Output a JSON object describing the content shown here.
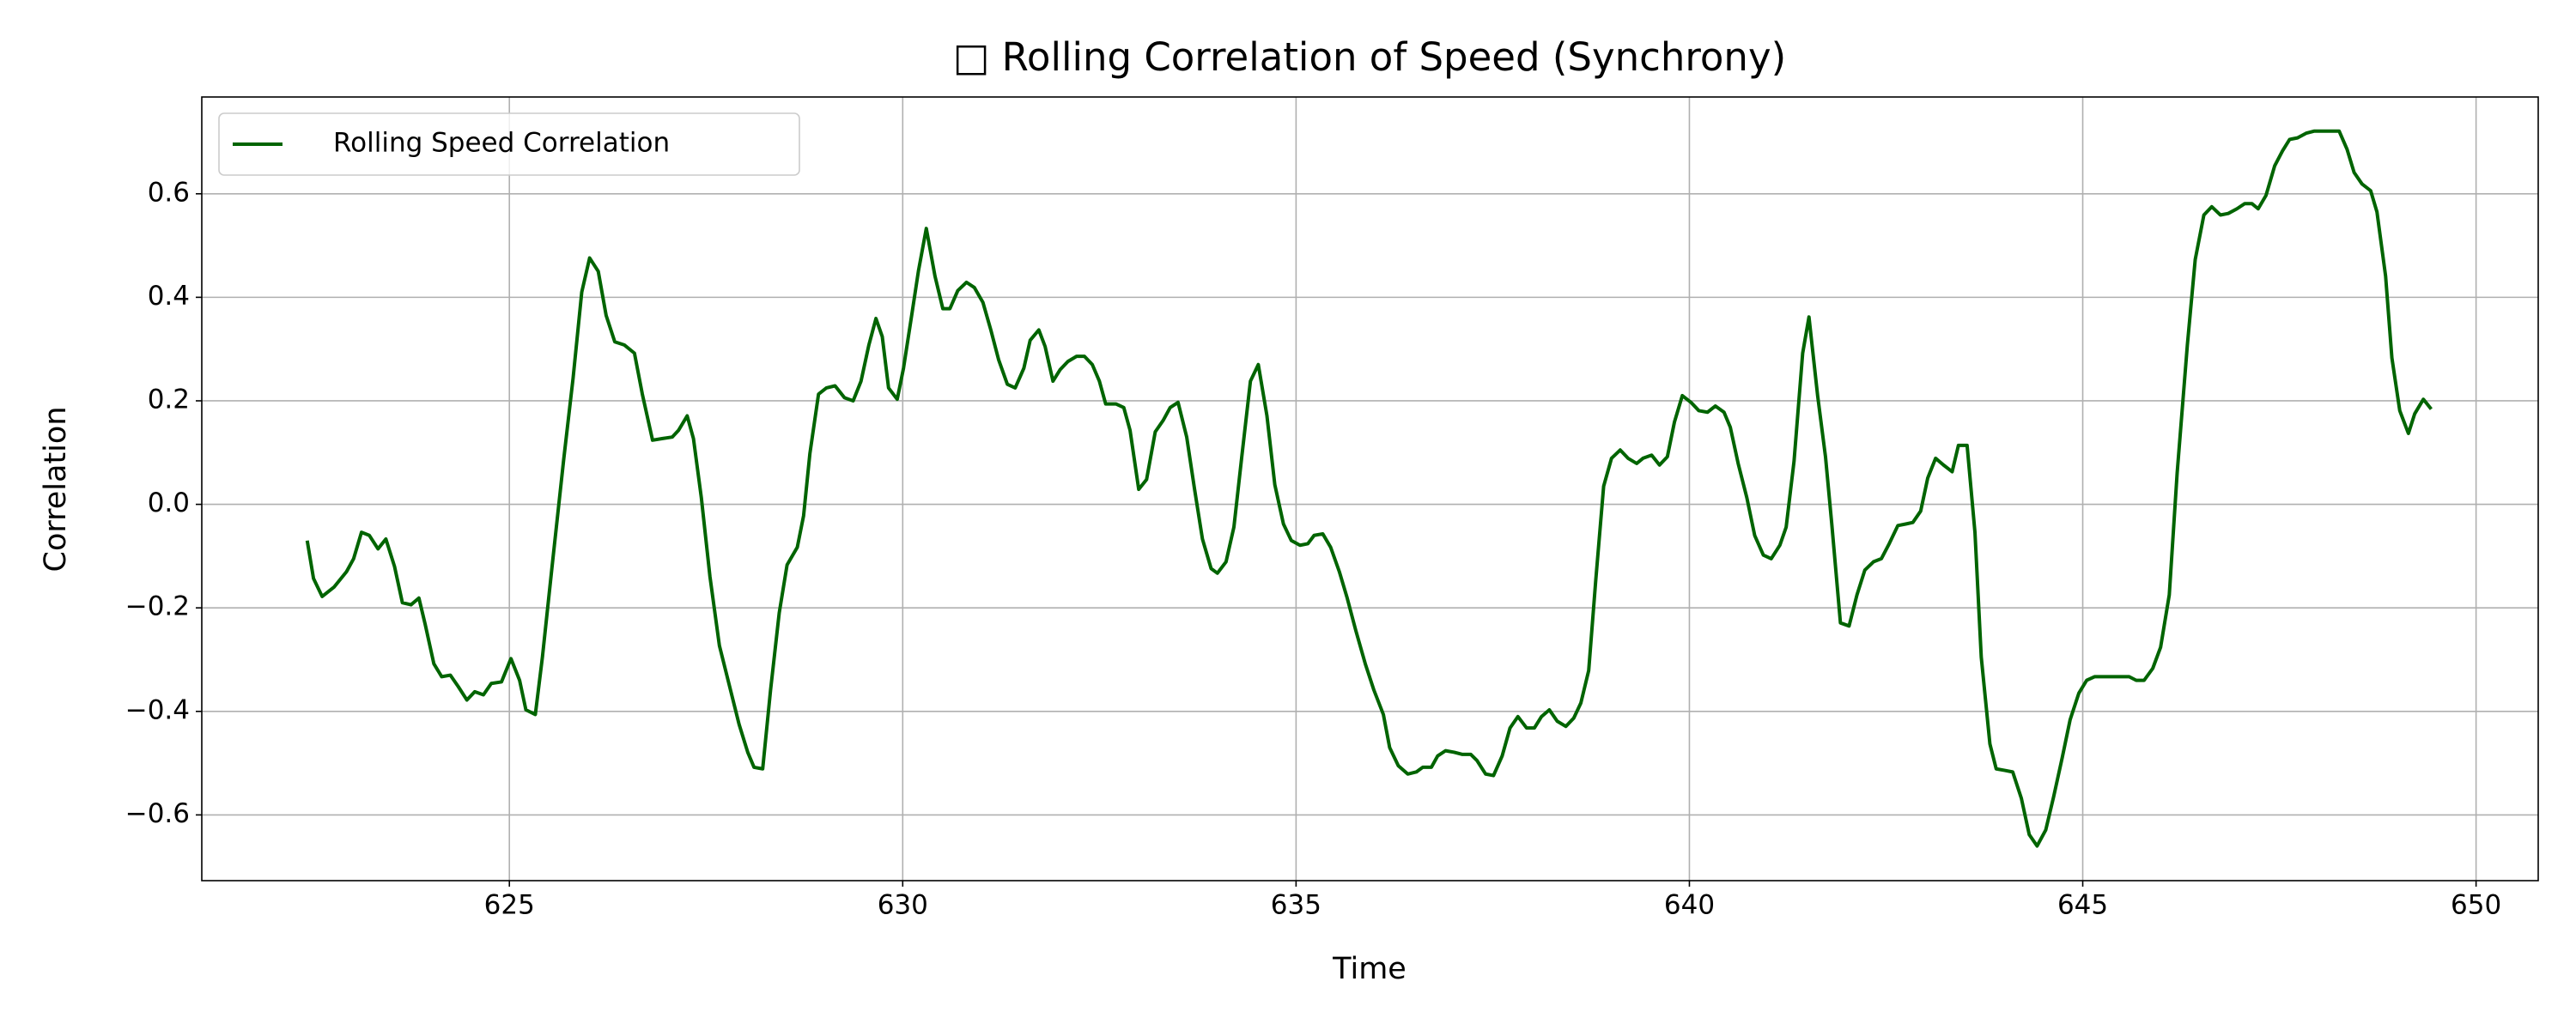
{
  "chart_data": {
    "type": "line",
    "title": "□ Rolling Correlation of Speed (Synchrony)",
    "xlabel": "Time",
    "ylabel": "Correlation",
    "legend": "upper left",
    "grid": true,
    "xlim": [
      621.09,
      650.79
    ],
    "ylim": [
      -0.727,
      0.787
    ],
    "xticks": [
      625,
      630,
      635,
      640,
      645,
      650
    ],
    "yticks": [
      {
        "value": -0.6,
        "label": "−0.6"
      },
      {
        "value": -0.4,
        "label": "−0.4"
      },
      {
        "value": -0.2,
        "label": "−0.2"
      },
      {
        "value": 0,
        "label": "0.0"
      },
      0.2,
      0.4,
      0.6
    ],
    "x": [
      622.43,
      622.51,
      622.62,
      622.77,
      622.93,
      623.02,
      623.12,
      623.22,
      623.33,
      623.43,
      623.54,
      623.64,
      623.75,
      623.85,
      623.93,
      624.04,
      624.14,
      624.25,
      624.35,
      624.46,
      624.56,
      624.67,
      624.77,
      624.9,
      625.02,
      625.13,
      625.21,
      625.33,
      625.42,
      625.54,
      625.69,
      625.81,
      625.92,
      626.02,
      626.13,
      626.23,
      626.34,
      626.46,
      626.59,
      626.69,
      626.82,
      626.94,
      627.07,
      627.15,
      627.26,
      627.34,
      627.44,
      627.55,
      627.67,
      627.8,
      627.92,
      628.03,
      628.11,
      628.22,
      628.32,
      628.43,
      628.53,
      628.66,
      628.74,
      628.82,
      628.93,
      629.03,
      629.14,
      629.26,
      629.37,
      629.47,
      629.57,
      629.66,
      629.74,
      629.82,
      629.93,
      630.01,
      630.12,
      630.2,
      630.3,
      630.41,
      630.51,
      630.6,
      630.7,
      630.81,
      630.91,
      631.02,
      631.12,
      631.22,
      631.33,
      631.43,
      631.54,
      631.62,
      631.73,
      631.81,
      631.91,
      632.0,
      632.1,
      632.21,
      632.31,
      632.41,
      632.5,
      632.58,
      632.71,
      632.81,
      632.89,
      633.0,
      633.1,
      633.21,
      633.31,
      633.4,
      633.5,
      633.61,
      633.71,
      633.81,
      633.92,
      634.0,
      634.11,
      634.21,
      634.31,
      634.42,
      634.52,
      634.63,
      634.73,
      634.84,
      634.94,
      635.05,
      635.15,
      635.23,
      635.34,
      635.44,
      635.55,
      635.65,
      635.76,
      635.88,
      635.99,
      636.11,
      636.19,
      636.3,
      636.42,
      636.53,
      636.61,
      636.72,
      636.8,
      636.9,
      637.01,
      637.11,
      637.22,
      637.3,
      637.41,
      637.51,
      637.62,
      637.72,
      637.82,
      637.93,
      638.03,
      638.12,
      638.22,
      638.32,
      638.43,
      638.53,
      638.62,
      638.72,
      638.81,
      638.91,
      639.01,
      639.12,
      639.22,
      639.33,
      639.41,
      639.52,
      639.62,
      639.72,
      639.81,
      639.91,
      640.02,
      640.12,
      640.23,
      640.33,
      640.44,
      640.52,
      640.62,
      640.73,
      640.83,
      640.94,
      641.04,
      641.15,
      641.23,
      641.33,
      641.44,
      641.52,
      641.63,
      641.73,
      641.81,
      641.92,
      642.03,
      642.13,
      642.23,
      642.34,
      642.44,
      642.54,
      642.65,
      642.75,
      642.84,
      642.94,
      643.03,
      643.13,
      643.23,
      643.34,
      643.42,
      643.53,
      643.63,
      643.71,
      643.82,
      643.9,
      644.01,
      644.11,
      644.22,
      644.32,
      644.42,
      644.53,
      644.63,
      644.74,
      644.84,
      644.95,
      645.05,
      645.15,
      645.26,
      645.36,
      645.49,
      645.59,
      645.68,
      645.78,
      645.89,
      645.99,
      646.1,
      646.2,
      646.33,
      646.43,
      646.54,
      646.64,
      646.75,
      646.85,
      646.96,
      647.06,
      647.15,
      647.23,
      647.33,
      647.44,
      647.54,
      647.63,
      647.73,
      647.84,
      647.94,
      648.05,
      648.15,
      648.26,
      648.36,
      648.45,
      648.55,
      648.66,
      648.74,
      648.85,
      648.93,
      649.03,
      649.14,
      649.22,
      649.33,
      649.43
    ],
    "series": [
      {
        "name": "Rolling Speed Correlation",
        "color": "#006400",
        "values": [
          -0.07,
          -0.143,
          -0.178,
          -0.16,
          -0.13,
          -0.105,
          -0.054,
          -0.06,
          -0.086,
          -0.067,
          -0.12,
          -0.19,
          -0.194,
          -0.181,
          -0.232,
          -0.308,
          -0.333,
          -0.33,
          -0.352,
          -0.378,
          -0.362,
          -0.368,
          -0.346,
          -0.343,
          -0.298,
          -0.34,
          -0.397,
          -0.406,
          -0.295,
          -0.124,
          0.086,
          0.244,
          0.41,
          0.476,
          0.45,
          0.365,
          0.314,
          0.308,
          0.292,
          0.213,
          0.124,
          0.127,
          0.13,
          0.143,
          0.171,
          0.127,
          0.013,
          -0.14,
          -0.273,
          -0.352,
          -0.425,
          -0.479,
          -0.508,
          -0.511,
          -0.359,
          -0.21,
          -0.117,
          -0.083,
          -0.022,
          0.098,
          0.213,
          0.225,
          0.229,
          0.206,
          0.2,
          0.238,
          0.308,
          0.359,
          0.324,
          0.225,
          0.203,
          0.263,
          0.371,
          0.451,
          0.533,
          0.441,
          0.378,
          0.378,
          0.413,
          0.429,
          0.419,
          0.39,
          0.337,
          0.279,
          0.232,
          0.225,
          0.263,
          0.317,
          0.337,
          0.305,
          0.238,
          0.26,
          0.276,
          0.286,
          0.286,
          0.27,
          0.238,
          0.194,
          0.194,
          0.187,
          0.143,
          0.029,
          0.048,
          0.14,
          0.162,
          0.187,
          0.197,
          0.13,
          0.029,
          -0.067,
          -0.124,
          -0.133,
          -0.111,
          -0.044,
          0.092,
          0.238,
          0.27,
          0.171,
          0.038,
          -0.038,
          -0.07,
          -0.079,
          -0.076,
          -0.06,
          -0.057,
          -0.083,
          -0.13,
          -0.181,
          -0.244,
          -0.308,
          -0.359,
          -0.406,
          -0.47,
          -0.505,
          -0.521,
          -0.517,
          -0.508,
          -0.508,
          -0.486,
          -0.476,
          -0.479,
          -0.483,
          -0.483,
          -0.495,
          -0.521,
          -0.524,
          -0.486,
          -0.432,
          -0.41,
          -0.432,
          -0.432,
          -0.41,
          -0.397,
          -0.419,
          -0.429,
          -0.413,
          -0.384,
          -0.321,
          -0.146,
          0.035,
          0.089,
          0.105,
          0.089,
          0.079,
          0.089,
          0.095,
          0.076,
          0.092,
          0.159,
          0.21,
          0.197,
          0.181,
          0.178,
          0.19,
          0.178,
          0.149,
          0.079,
          0.013,
          -0.06,
          -0.098,
          -0.105,
          -0.079,
          -0.044,
          0.083,
          0.292,
          0.362,
          0.21,
          0.092,
          -0.038,
          -0.229,
          -0.235,
          -0.175,
          -0.127,
          -0.111,
          -0.105,
          -0.076,
          -0.041,
          -0.038,
          -0.035,
          -0.013,
          0.051,
          0.089,
          0.076,
          0.063,
          0.114,
          0.114,
          -0.054,
          -0.295,
          -0.463,
          -0.511,
          -0.514,
          -0.517,
          -0.568,
          -0.638,
          -0.66,
          -0.629,
          -0.565,
          -0.489,
          -0.416,
          -0.365,
          -0.34,
          -0.333,
          -0.333,
          -0.333,
          -0.333,
          -0.333,
          -0.34,
          -0.34,
          -0.317,
          -0.276,
          -0.175,
          0.06,
          0.308,
          0.473,
          0.559,
          0.575,
          0.559,
          0.562,
          0.571,
          0.581,
          0.581,
          0.571,
          0.597,
          0.654,
          0.683,
          0.705,
          0.708,
          0.717,
          0.721,
          0.721,
          0.721,
          0.721,
          0.686,
          0.641,
          0.619,
          0.606,
          0.565,
          0.441,
          0.283,
          0.181,
          0.137,
          0.175,
          0.203,
          0.184
        ]
      }
    ]
  }
}
